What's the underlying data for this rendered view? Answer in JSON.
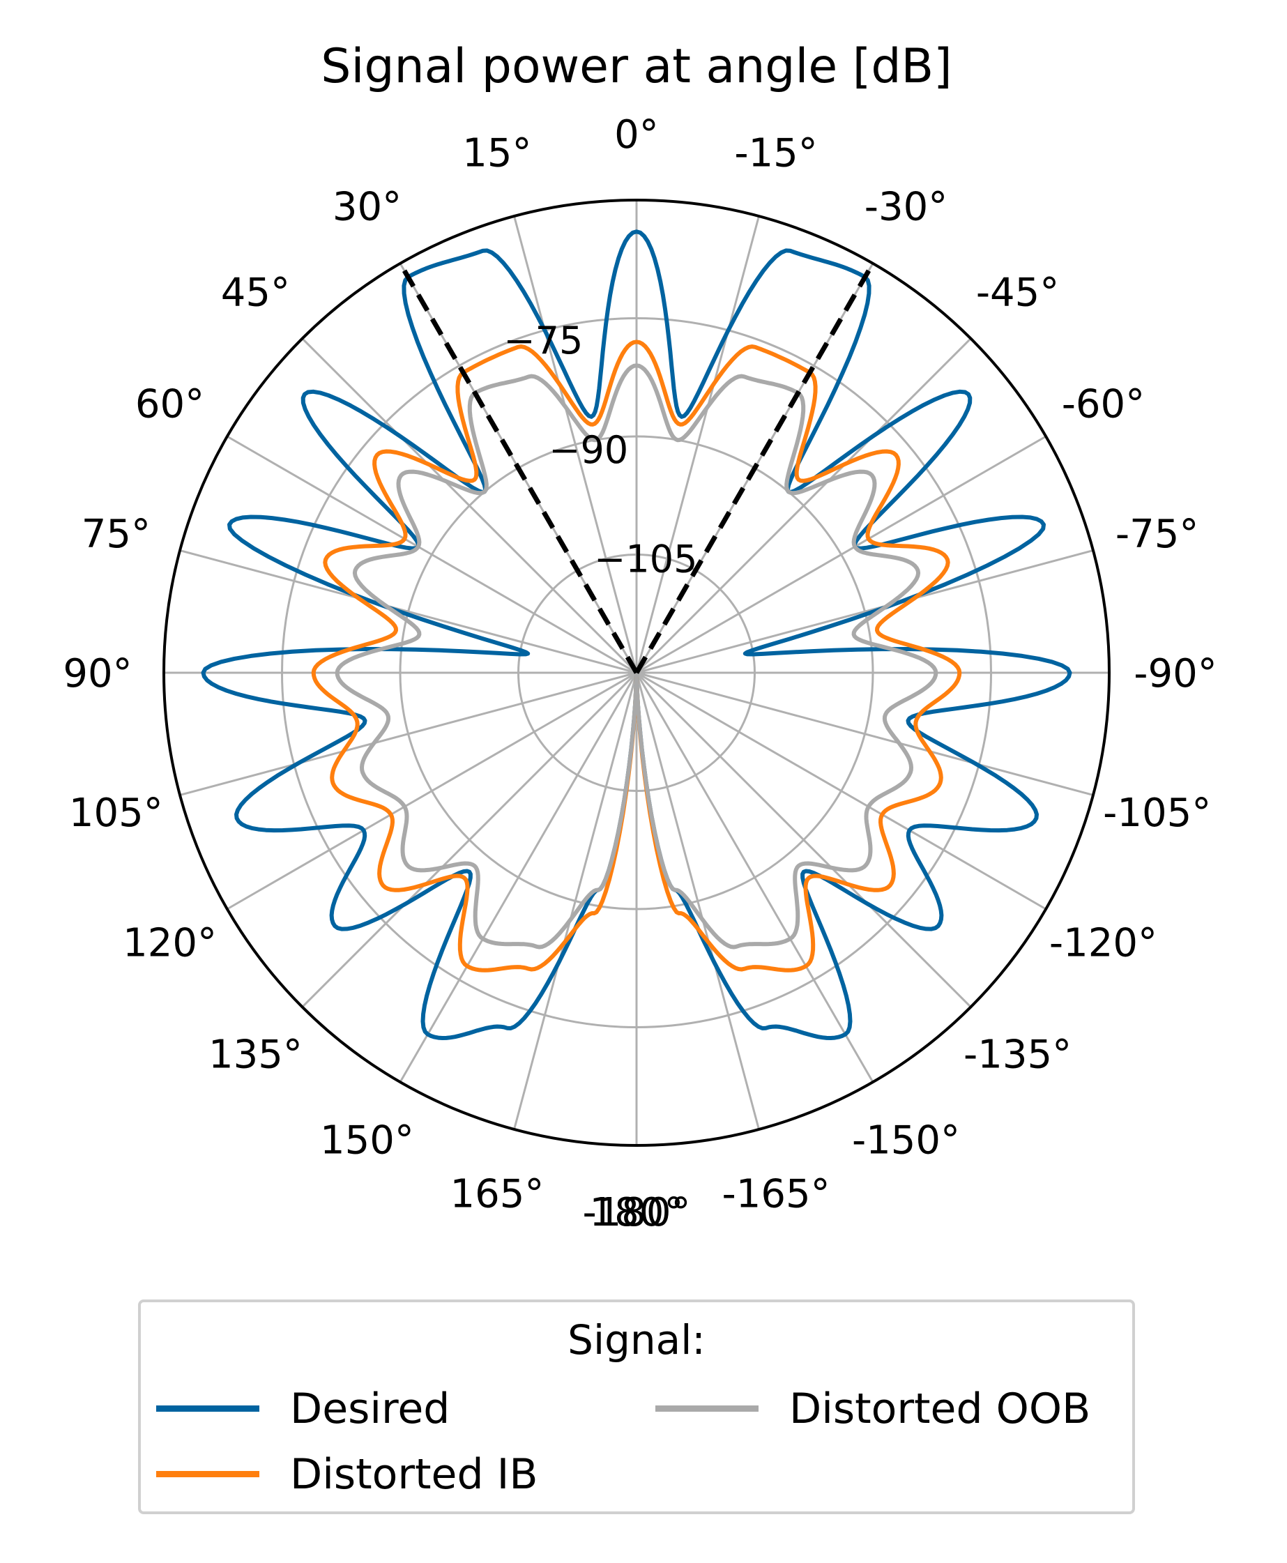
{
  "chart_data": {
    "type": "polar-line",
    "title": "Signal power at angle [dB]",
    "theta_ticks": [
      "0°",
      "-15°",
      "-30°",
      "-45°",
      "-60°",
      "-75°",
      "-90°",
      "-105°",
      "-120°",
      "-135°",
      "-150°",
      "-165°",
      "-180°",
      "165°",
      "150°",
      "135°",
      "120°",
      "105°",
      "90°",
      "75°",
      "60°",
      "45°",
      "30°",
      "15°",
      "180°"
    ],
    "r_ticks": [
      "−75",
      "−90",
      "−105"
    ],
    "r_tick_values": [
      -75,
      -90,
      -105
    ],
    "r_range": [
      -120,
      -60
    ],
    "theta_direction": "counterclockwise",
    "theta_zero": "top",
    "grid": true,
    "reference_lines": [
      {
        "angle_deg": 30,
        "style": "dashed",
        "color": "#000000"
      },
      {
        "angle_deg": -30,
        "style": "dashed",
        "color": "#000000"
      }
    ],
    "series": [
      {
        "name": "Desired",
        "color": "#0063a0",
        "theta_deg": [
          0,
          10,
          20,
          30,
          40,
          50,
          60,
          70,
          80,
          90,
          100,
          110,
          120,
          130,
          140,
          150,
          160,
          170,
          180
        ],
        "values_db": [
          -64,
          -87,
          -63,
          -62,
          -90,
          -65,
          -88,
          -65,
          -106,
          -65,
          -85,
          -66,
          -80,
          -70,
          -87,
          -67,
          -72,
          -92,
          -120
        ]
      },
      {
        "name": "Distorted IB",
        "color": "#ff7f0e",
        "theta_deg": [
          0,
          10,
          20,
          30,
          40,
          50,
          60,
          70,
          80,
          90,
          100,
          110,
          120,
          130,
          140,
          150,
          160,
          170,
          180
        ],
        "values_db": [
          -78,
          -88,
          -76,
          -76,
          -88,
          -77,
          -86,
          -78,
          -89,
          -79,
          -84,
          -79,
          -84,
          -78,
          -86,
          -77,
          -80,
          -89,
          -120
        ]
      },
      {
        "name": "Distorted OOB",
        "color": "#a9a9a9",
        "theta_deg": [
          0,
          10,
          20,
          30,
          40,
          50,
          60,
          70,
          80,
          90,
          100,
          110,
          120,
          130,
          140,
          150,
          160,
          170,
          180
        ],
        "values_db": [
          -81,
          -90,
          -80,
          -79,
          -90,
          -81,
          -88,
          -82,
          -92,
          -82,
          -88,
          -83,
          -86,
          -82,
          -88,
          -81,
          -83,
          -92,
          -120
        ]
      }
    ]
  },
  "legend": {
    "title": "Signal:",
    "placement": "bottom-center"
  }
}
